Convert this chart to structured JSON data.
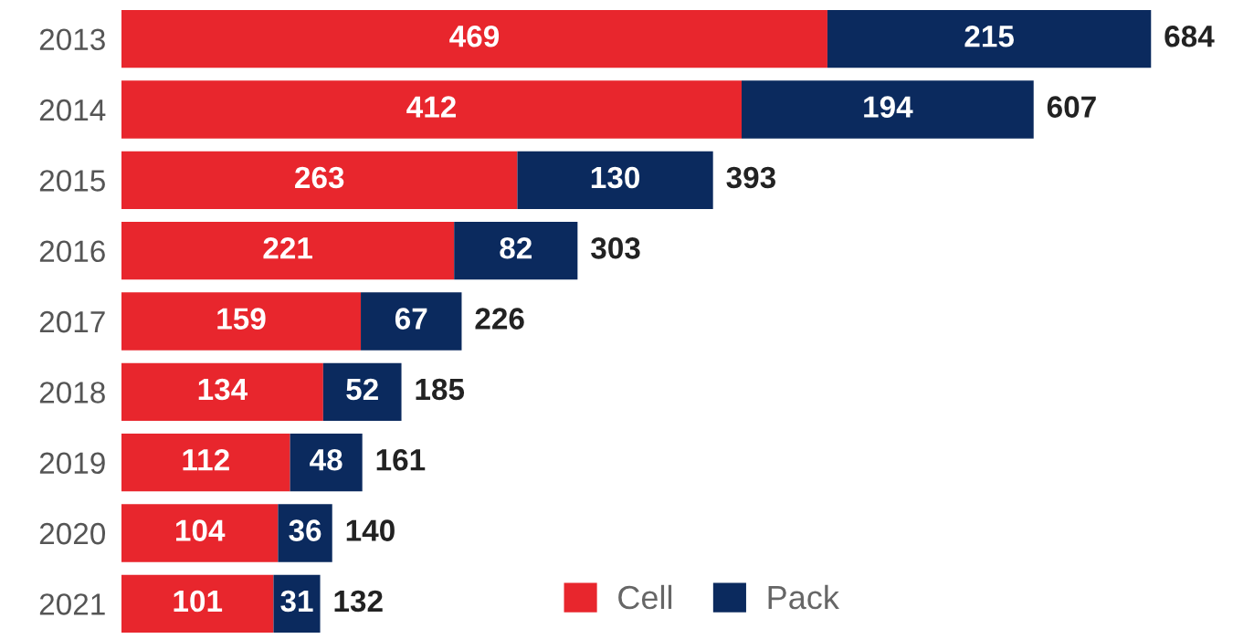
{
  "chart_data": {
    "type": "bar",
    "orientation": "horizontal",
    "stacked": true,
    "categories": [
      "2013",
      "2014",
      "2015",
      "2016",
      "2017",
      "2018",
      "2019",
      "2020",
      "2021"
    ],
    "series": [
      {
        "name": "Cell",
        "color": "#e8262d",
        "values": [
          469,
          412,
          263,
          221,
          159,
          134,
          112,
          104,
          101
        ]
      },
      {
        "name": "Pack",
        "color": "#0b2a5e",
        "values": [
          215,
          194,
          130,
          82,
          67,
          52,
          48,
          36,
          31
        ]
      }
    ],
    "totals": [
      "684",
      "607",
      "393",
      "303",
      "226",
      "185",
      "161",
      "140",
      "132"
    ],
    "data_labels": true,
    "tick_labels": "y",
    "legend": "bottom right"
  }
}
